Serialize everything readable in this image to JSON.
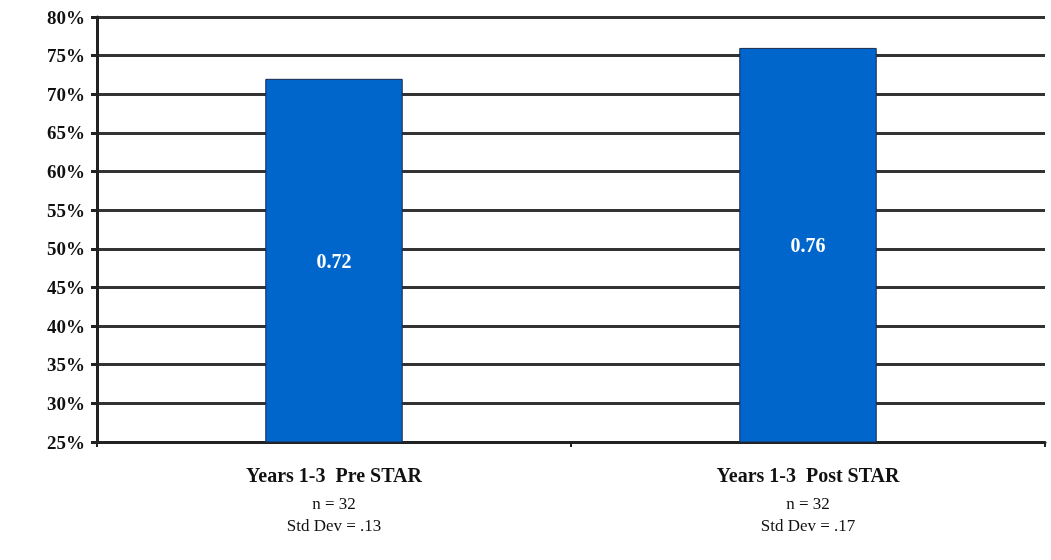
{
  "chart_data": {
    "type": "bar",
    "categories": [
      "Years 1-3  Pre STAR\nn = 32\nStd Dev = .13",
      "Years 1-3  Post STAR\nn = 32\nStd Dev = .17"
    ],
    "values": [
      0.72,
      0.76
    ],
    "data_labels": true,
    "color": "#0066cc",
    "ylim": [
      0.25,
      0.8
    ],
    "yticks": [
      {
        "value": 0.25,
        "label": "25%"
      },
      {
        "value": 0.3,
        "label": "30%"
      },
      {
        "value": 0.35,
        "label": "35%"
      },
      {
        "value": 0.4,
        "label": "40%"
      },
      {
        "value": 0.45,
        "label": "45%"
      },
      {
        "value": 0.5,
        "label": "50%"
      },
      {
        "value": 0.55,
        "label": "55%"
      },
      {
        "value": 0.6,
        "label": "60%"
      },
      {
        "value": 0.65,
        "label": "65%"
      },
      {
        "value": 0.7,
        "label": "70%"
      },
      {
        "value": 0.75,
        "label": "75%"
      },
      {
        "value": 0.8,
        "label": "80%"
      }
    ],
    "grid": "y"
  }
}
